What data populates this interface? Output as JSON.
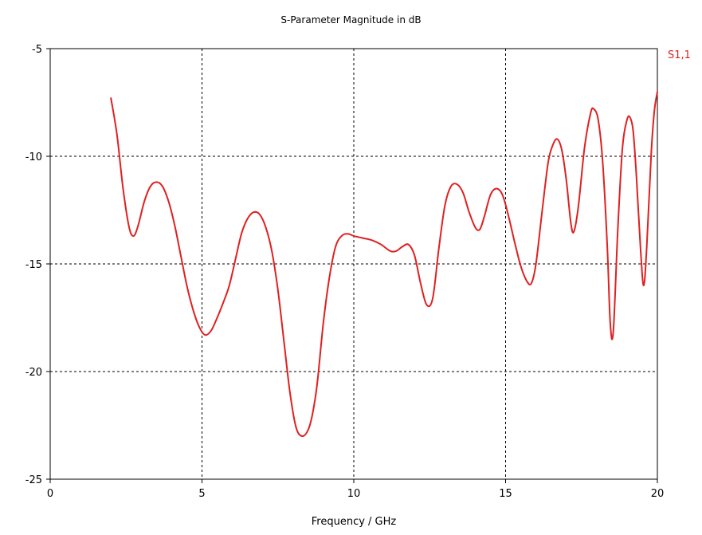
{
  "chart_data": {
    "type": "line",
    "title": "S-Parameter Magnitude in dB",
    "xlabel": "Frequency / GHz",
    "ylabel": "",
    "xlim": [
      0,
      20
    ],
    "ylim": [
      -25,
      -5
    ],
    "xticks": [
      "0",
      "5",
      "10",
      "15",
      "20"
    ],
    "yticks": [
      "-5",
      "-10",
      "-15",
      "-20",
      "-25"
    ],
    "grid": true,
    "legend_position": "top-right",
    "series": [
      {
        "name": "S1,1",
        "color": "#e02020",
        "x": [
          2.0,
          2.2,
          2.4,
          2.6,
          2.75,
          2.9,
          3.1,
          3.3,
          3.5,
          3.7,
          3.9,
          4.1,
          4.3,
          4.5,
          4.7,
          4.9,
          5.1,
          5.3,
          5.5,
          5.7,
          5.9,
          6.1,
          6.3,
          6.5,
          6.7,
          6.9,
          7.1,
          7.3,
          7.5,
          7.7,
          7.9,
          8.1,
          8.3,
          8.5,
          8.65,
          8.8,
          9.0,
          9.2,
          9.4,
          9.6,
          9.8,
          10.0,
          10.3,
          10.6,
          10.9,
          11.2,
          11.4,
          11.6,
          11.8,
          12.0,
          12.2,
          12.4,
          12.6,
          12.8,
          13.0,
          13.2,
          13.4,
          13.6,
          13.8,
          14.0,
          14.15,
          14.3,
          14.5,
          14.7,
          14.9,
          15.1,
          15.3,
          15.5,
          15.7,
          15.85,
          16.0,
          16.2,
          16.4,
          16.55,
          16.7,
          16.85,
          17.0,
          17.15,
          17.25,
          17.4,
          17.6,
          17.8,
          17.9,
          18.05,
          18.2,
          18.35,
          18.45,
          18.55,
          18.7,
          18.85,
          19.0,
          19.1,
          19.2,
          19.3,
          19.45,
          19.55,
          19.65,
          19.8,
          19.9,
          20.0
        ],
        "y": [
          -7.3,
          -9.0,
          -11.5,
          -13.3,
          -13.7,
          -13.2,
          -12.1,
          -11.4,
          -11.2,
          -11.4,
          -12.1,
          -13.2,
          -14.6,
          -16.0,
          -17.1,
          -17.9,
          -18.3,
          -18.1,
          -17.5,
          -16.8,
          -16.0,
          -14.8,
          -13.6,
          -12.9,
          -12.6,
          -12.7,
          -13.3,
          -14.4,
          -16.2,
          -18.6,
          -21.0,
          -22.6,
          -23.0,
          -22.7,
          -21.9,
          -20.5,
          -17.7,
          -15.6,
          -14.2,
          -13.7,
          -13.6,
          -13.7,
          -13.8,
          -13.9,
          -14.1,
          -14.4,
          -14.4,
          -14.2,
          -14.1,
          -14.6,
          -15.9,
          -16.9,
          -16.6,
          -14.3,
          -12.3,
          -11.4,
          -11.3,
          -11.7,
          -12.6,
          -13.3,
          -13.4,
          -12.8,
          -11.8,
          -11.5,
          -11.8,
          -12.8,
          -14.0,
          -15.1,
          -15.8,
          -15.9,
          -15.0,
          -12.6,
          -10.3,
          -9.5,
          -9.2,
          -9.7,
          -11.1,
          -13.1,
          -13.5,
          -12.3,
          -9.6,
          -8.0,
          -7.8,
          -8.3,
          -10.3,
          -14.2,
          -17.8,
          -18.1,
          -13.3,
          -9.6,
          -8.3,
          -8.2,
          -8.8,
          -10.7,
          -14.4,
          -16.0,
          -14.2,
          -9.8,
          -7.9,
          -7.0
        ]
      }
    ]
  }
}
